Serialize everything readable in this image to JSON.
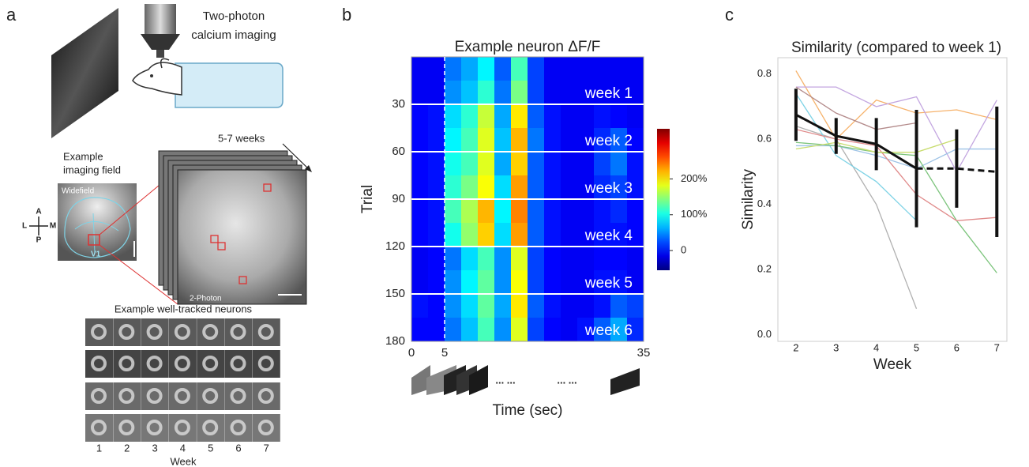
{
  "panel_labels": [
    "a",
    "b",
    "c"
  ],
  "panel_a": {
    "microscope_text": [
      "Two-photon",
      "calcium imaging"
    ],
    "weeks_span": "5-7 weeks",
    "field_text": [
      "Example",
      "imaging field"
    ],
    "widefield": "Widefield",
    "region": "V1",
    "compass": {
      "anterior": "A",
      "left": "L",
      "medial": "M",
      "posterior": "P"
    },
    "two_photon": "2-Photon",
    "neurons_title": "Example well-tracked neurons",
    "weeks": [
      1,
      2,
      3,
      4,
      5,
      6,
      7
    ],
    "week_axis": "Week"
  },
  "chart_data": [
    {
      "type": "heatmap",
      "title": "Example neuron ΔF/F",
      "ylabel": "Trial",
      "xlabel": "Time (sec)",
      "xlim": [
        0,
        35
      ],
      "xticks": [
        0,
        5,
        35
      ],
      "ylim": [
        0,
        180
      ],
      "yticks": [
        30,
        60,
        90,
        120,
        150,
        180
      ],
      "vline_x": 5,
      "x_bins": [
        0,
        2.5,
        5,
        7.5,
        10,
        12.5,
        15,
        17.5,
        20,
        22.5,
        25,
        27.5,
        30,
        32.5,
        35
      ],
      "y_bins": [
        0,
        15,
        30,
        45,
        60,
        75,
        90,
        105,
        120,
        135,
        150,
        165,
        180
      ],
      "values": [
        [
          -10,
          -10,
          40,
          60,
          90,
          30,
          120,
          20,
          -10,
          -10,
          -10,
          -10,
          -10,
          -10
        ],
        [
          -10,
          -10,
          50,
          70,
          110,
          40,
          140,
          20,
          -10,
          -10,
          -10,
          -10,
          -10,
          -10
        ],
        [
          -5,
          0,
          80,
          110,
          170,
          60,
          200,
          30,
          0,
          -10,
          -10,
          0,
          -5,
          -10
        ],
        [
          -5,
          0,
          90,
          120,
          180,
          70,
          220,
          40,
          0,
          -10,
          -10,
          10,
          30,
          -5
        ],
        [
          -5,
          0,
          100,
          120,
          180,
          60,
          210,
          30,
          0,
          -10,
          -10,
          20,
          40,
          0
        ],
        [
          -5,
          0,
          110,
          140,
          190,
          80,
          230,
          30,
          0,
          -10,
          -10,
          10,
          20,
          0
        ],
        [
          -5,
          0,
          120,
          160,
          220,
          90,
          240,
          30,
          0,
          -10,
          -10,
          0,
          10,
          -5
        ],
        [
          -5,
          0,
          100,
          150,
          210,
          80,
          230,
          30,
          0,
          -10,
          -10,
          0,
          0,
          -5
        ],
        [
          -10,
          -5,
          40,
          80,
          120,
          50,
          180,
          20,
          -5,
          -10,
          -10,
          -5,
          -5,
          -10
        ],
        [
          -10,
          -5,
          50,
          90,
          130,
          50,
          190,
          20,
          -5,
          -10,
          -10,
          0,
          0,
          -10
        ],
        [
          0,
          -5,
          50,
          80,
          130,
          60,
          200,
          30,
          0,
          -10,
          -10,
          0,
          30,
          20
        ],
        [
          -5,
          -5,
          40,
          70,
          120,
          50,
          180,
          20,
          -5,
          -10,
          0,
          30,
          60,
          10
        ]
      ],
      "colormap": "jet",
      "clim": [
        -55,
        340
      ],
      "colorbar_ticks": [
        {
          "value": 0,
          "label": "0"
        },
        {
          "value": 100,
          "label": "100%"
        },
        {
          "value": 200,
          "label": "200%"
        }
      ],
      "annotations": [
        "week 1",
        "week 2",
        "week 3",
        "week 4",
        "week 5",
        "week 6"
      ],
      "annotation_gap": "... ..."
    },
    {
      "type": "line",
      "title": "Similarity (compared to week 1)",
      "xlabel": "Week",
      "ylabel": "Similarity",
      "x": [
        2,
        3,
        4,
        5,
        6,
        7
      ],
      "xlim": [
        1.55,
        7.25
      ],
      "xticks": [
        2,
        3,
        4,
        5,
        6,
        7
      ],
      "ylim": [
        -0.02,
        0.85
      ],
      "yticks": [
        {
          "value": 0,
          "label": "0.0"
        },
        0.2,
        0.4,
        0.6,
        0.8
      ],
      "series": [
        {
          "color": "#f6b26b",
          "values": [
            0.81,
            0.6,
            0.72,
            0.68,
            0.69,
            0.66
          ]
        },
        {
          "color": "#c3a6e0",
          "values": [
            0.76,
            0.76,
            0.7,
            0.73,
            0.5,
            0.72
          ]
        },
        {
          "color": "#b38a8a",
          "values": [
            0.76,
            0.68,
            0.63,
            0.65,
            null,
            null
          ]
        },
        {
          "color": "#b0b0b0",
          "values": [
            0.64,
            0.6,
            0.4,
            0.08,
            null,
            null
          ]
        },
        {
          "color": "#7fd3e6",
          "values": [
            0.74,
            0.55,
            0.47,
            0.35,
            null,
            null
          ]
        },
        {
          "color": "#9ec3e6",
          "values": [
            0.58,
            0.58,
            0.55,
            0.51,
            0.57,
            0.57
          ]
        },
        {
          "color": "#7cc47c",
          "values": [
            0.59,
            0.58,
            0.56,
            0.55,
            0.35,
            0.19
          ]
        },
        {
          "color": "#e08a8a",
          "values": [
            0.63,
            0.6,
            0.58,
            0.43,
            0.35,
            0.36
          ]
        },
        {
          "color": "#c8dc6e",
          "values": [
            0.57,
            0.59,
            0.56,
            0.56,
            0.6,
            null
          ]
        },
        {
          "color": "#111111",
          "width": 3,
          "dashed_from_index": 3,
          "values": [
            0.675,
            0.61,
            0.585,
            0.51,
            0.51,
            0.5
          ],
          "errors": [
            0.08,
            0.055,
            0.08,
            0.18,
            0.12,
            0.2
          ]
        }
      ]
    }
  ]
}
